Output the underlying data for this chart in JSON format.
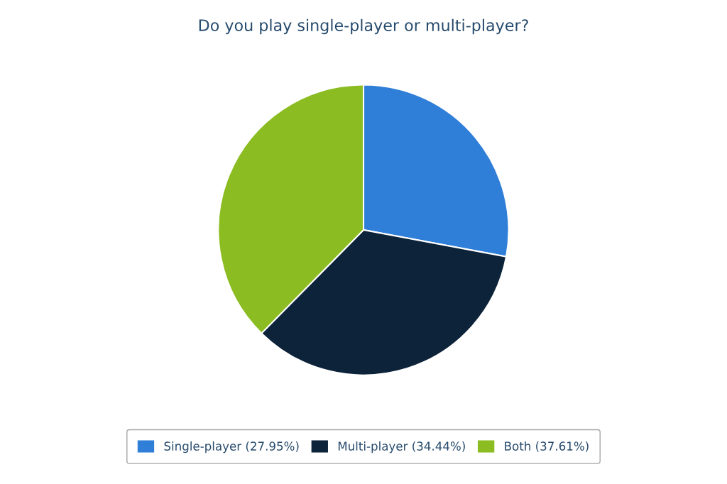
{
  "chart_data": {
    "type": "pie",
    "title": "Do you play single-player or multi-player?",
    "categories": [
      "Single-player (27.95%)",
      "Multi-player (34.44%)",
      "Both (37.61%)"
    ],
    "values": [
      27.95,
      34.44,
      37.61
    ],
    "colors": [
      "#2f7ed8",
      "#0d233a",
      "#8bbc21"
    ],
    "legend": "bottom"
  }
}
